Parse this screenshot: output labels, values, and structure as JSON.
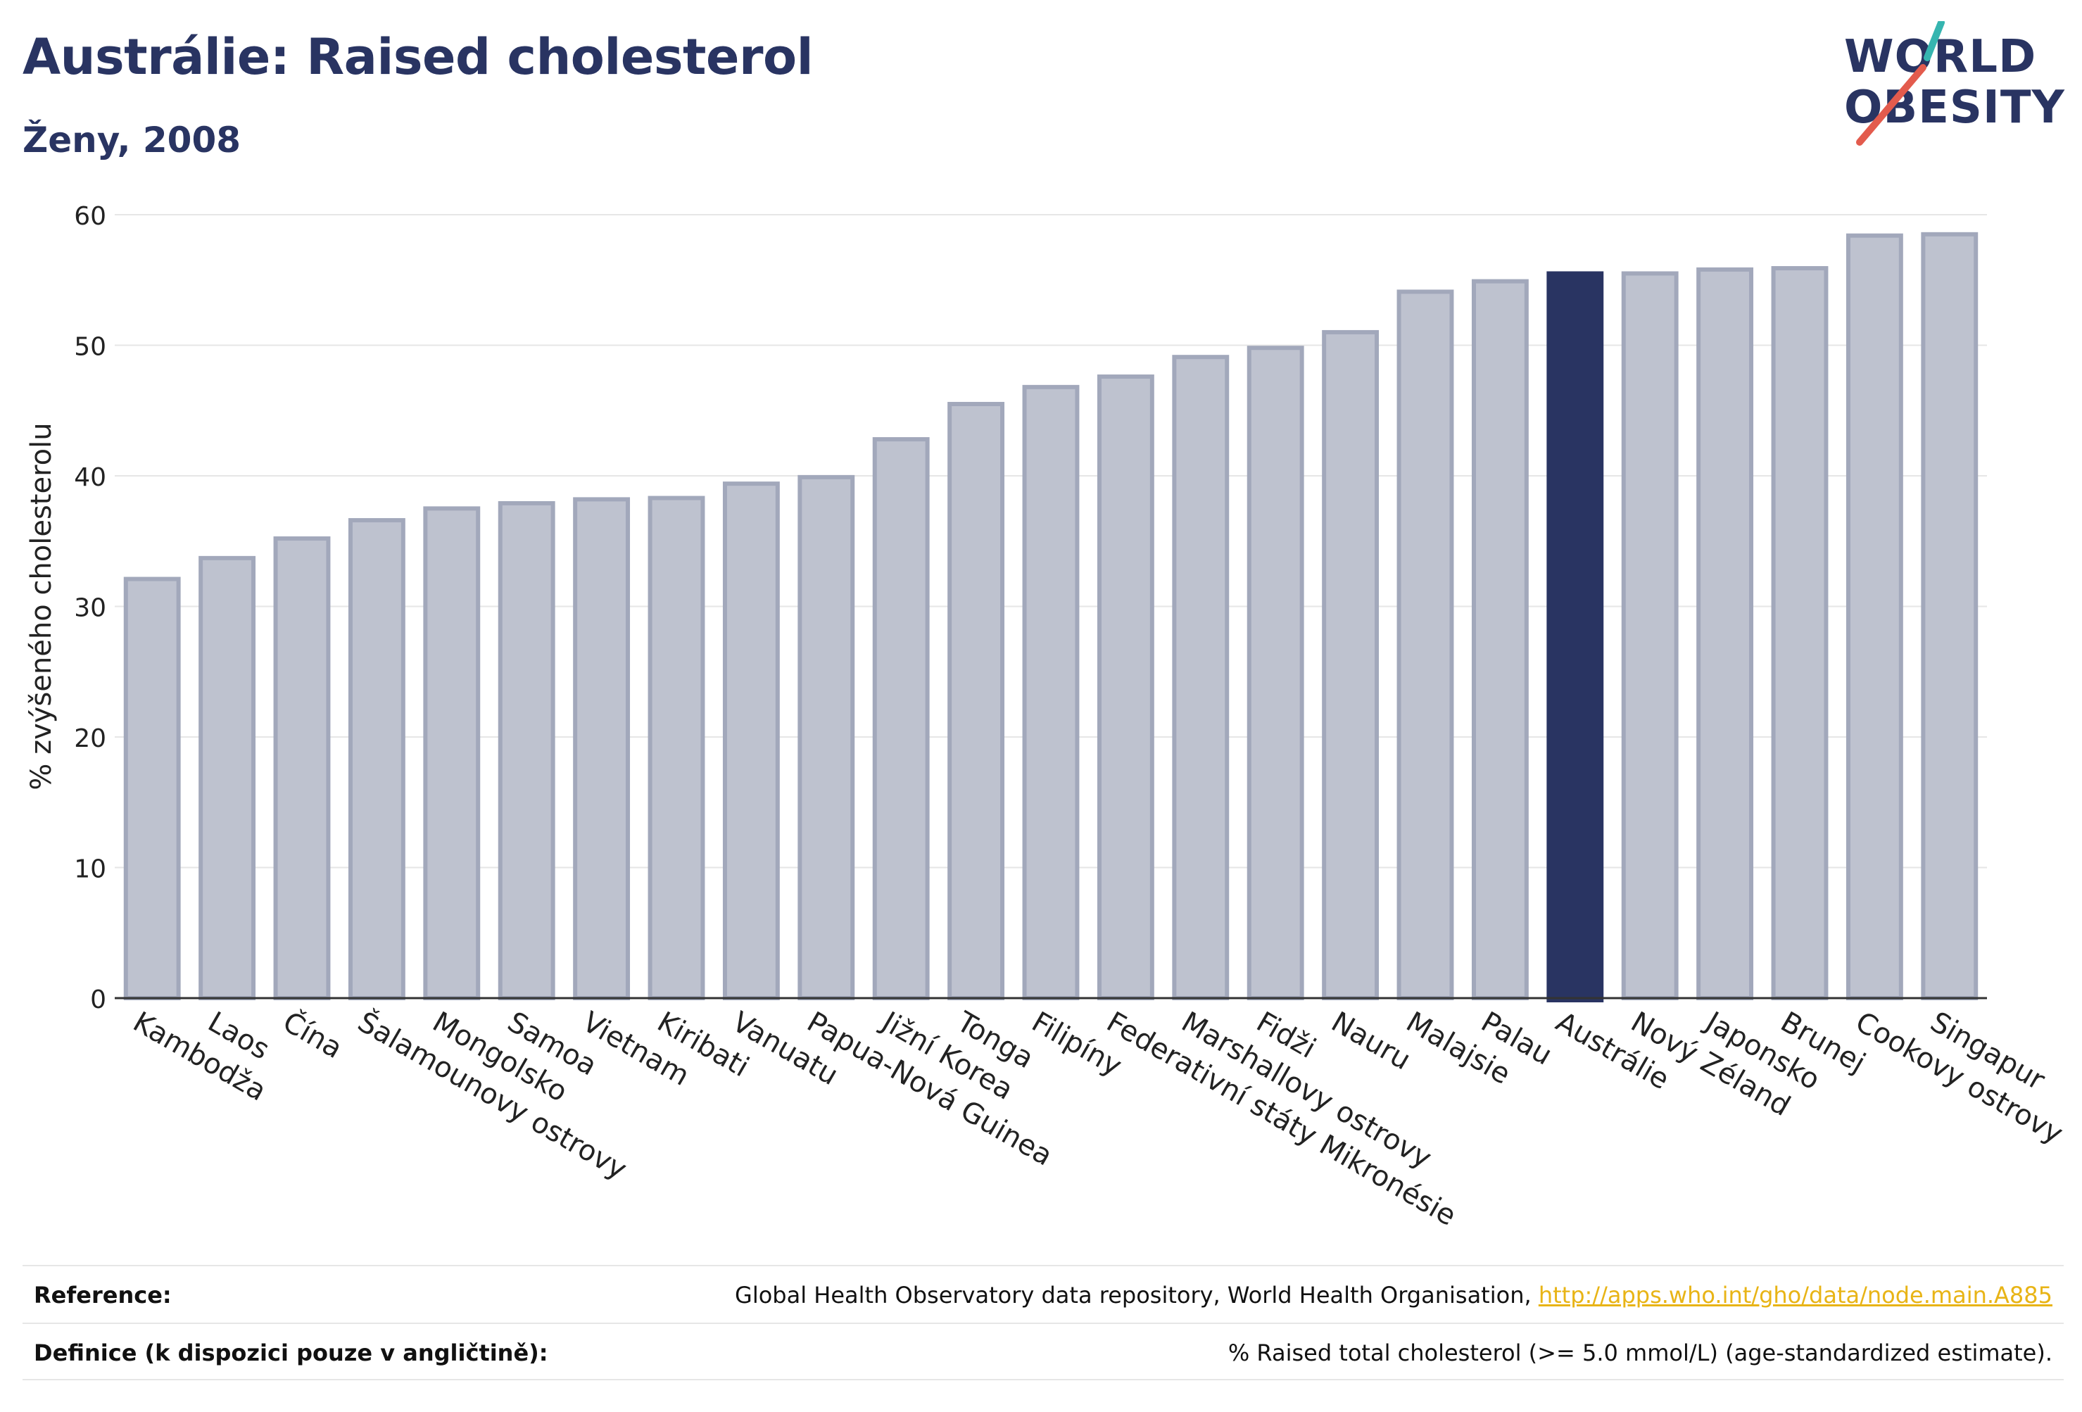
{
  "header": {
    "title": "Austrálie: Raised cholesterol",
    "subtitle": "Ženy, 2008"
  },
  "logo": {
    "line1": "WORLD",
    "line2": "OBESITY"
  },
  "chart_data": {
    "type": "bar",
    "title": "Austrálie: Raised cholesterol",
    "subtitle": "Ženy, 2008",
    "ylabel": "% zvýšeného cholesterolu",
    "xlabel": "",
    "ylim": [
      0,
      60
    ],
    "yticks": [
      0,
      10,
      20,
      30,
      40,
      50,
      60
    ],
    "grid": true,
    "highlight": "Austrálie",
    "categories": [
      "Kambodža",
      "Laos",
      "Čína",
      "Šalamounovy ostrovy",
      "Mongolsko",
      "Samoa",
      "Vietnam",
      "Kiribati",
      "Vanuatu",
      "Papua-Nová Guinea",
      "Jižní Korea",
      "Tonga",
      "Filipíny",
      "Federativní státy Mikronésie",
      "Marshallovy ostrovy",
      "Fidži",
      "Nauru",
      "Malajsie",
      "Palau",
      "Austrálie",
      "Nový Zéland",
      "Japonsko",
      "Brunej",
      "Cookovy ostrovy",
      "Singapur"
    ],
    "values": [
      32.1,
      33.7,
      35.2,
      36.6,
      37.5,
      37.9,
      38.2,
      38.3,
      39.4,
      39.9,
      42.8,
      45.5,
      46.8,
      47.6,
      49.1,
      49.8,
      51.0,
      54.1,
      54.9,
      55.5,
      55.5,
      55.8,
      55.9,
      58.4,
      58.5
    ]
  },
  "colors": {
    "bar": "#bec2cf",
    "bar_border": "#a2a8bb",
    "highlight": "#293462",
    "accent_teal": "#36b5b0",
    "accent_red": "#e35b4d",
    "link": "#e8b416"
  },
  "footer": {
    "reference_label": "Reference:",
    "reference_text": "Global Health Observatory data repository, World Health Organisation, ",
    "reference_link": "http://apps.who.int/gho/data/node.main.A885",
    "definition_label": "Definice (k dispozici pouze v angličtině):",
    "definition_text": "% Raised total cholesterol (>= 5.0 mmol/L) (age-standardized estimate)."
  }
}
